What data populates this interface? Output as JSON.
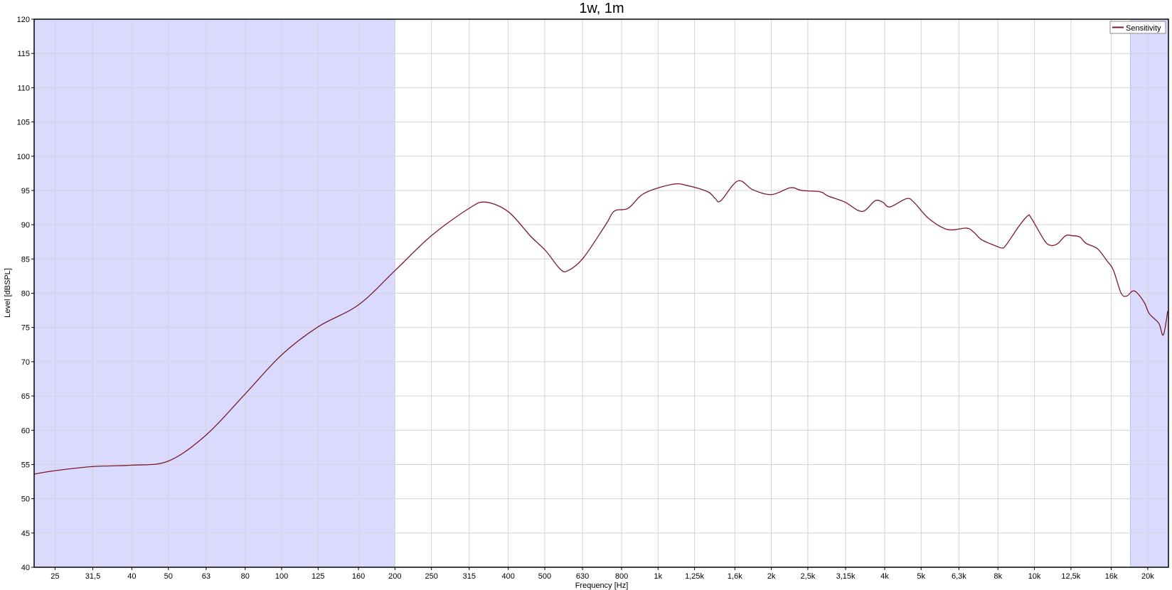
{
  "chart_data": {
    "type": "line",
    "title": "1w, 1m",
    "xlabel": "Frequency [Hz]",
    "ylabel": "Level [dBSPL]",
    "x_scale": "log",
    "xlim": [
      22,
      22700
    ],
    "ylim": [
      40,
      120
    ],
    "grid": true,
    "legend_position": "top-right",
    "x_ticks": [
      25,
      31.5,
      40,
      50,
      63,
      80,
      100,
      125,
      160,
      200,
      250,
      315,
      400,
      500,
      630,
      800,
      1000,
      1250,
      1600,
      2000,
      2500,
      3150,
      4000,
      5000,
      6300,
      8000,
      10000,
      12500,
      16000,
      20000
    ],
    "x_tick_labels": [
      "25",
      "31,5",
      "40",
      "50",
      "63",
      "80",
      "100",
      "125",
      "160",
      "200",
      "250",
      "315",
      "400",
      "500",
      "630",
      "800",
      "1k",
      "1,25k",
      "1,6k",
      "2k",
      "2,5k",
      "3,15k",
      "4k",
      "5k",
      "6,3k",
      "8k",
      "10k",
      "12,5k",
      "16k",
      "20k"
    ],
    "y_ticks": [
      40,
      45,
      50,
      55,
      60,
      65,
      70,
      75,
      80,
      85,
      90,
      95,
      100,
      105,
      110,
      115,
      120
    ],
    "shaded_ranges": [
      [
        22,
        200
      ],
      [
        18000,
        22700
      ]
    ],
    "colors": {
      "shade": "#dadaff",
      "line": "#7b1a2a",
      "grid": "#d3d3d3"
    },
    "series": [
      {
        "name": "Sensitivity",
        "x": [
          22,
          25,
          31.5,
          40,
          50,
          63,
          80,
          100,
          125,
          160,
          200,
          250,
          315,
          348,
          400,
          459,
          503,
          550,
          577,
          632,
          726,
          766,
          833,
          920,
          1094,
          1200,
          1357,
          1420,
          1468,
          1631,
          1786,
          2004,
          2248,
          2407,
          2700,
          2825,
          3137,
          3395,
          3550,
          3774,
          3950,
          4130,
          4570,
          4780,
          5240,
          5880,
          6600,
          6900,
          7240,
          7900,
          8200,
          8400,
          9100,
          9600,
          9800,
          10600,
          11000,
          11500,
          12100,
          12600,
          13200,
          13700,
          14700,
          15600,
          16200,
          17000,
          17600,
          18200,
          18700,
          19600,
          20200,
          21400,
          22000,
          22600
        ],
        "y": [
          53.6,
          54.1,
          54.7,
          54.9,
          55.5,
          59.3,
          65.3,
          71.0,
          75.1,
          78.3,
          83.3,
          88.4,
          92.4,
          93.3,
          91.9,
          88.3,
          86.2,
          83.5,
          83.3,
          85.1,
          90.0,
          92.0,
          92.4,
          94.6,
          95.9,
          95.7,
          94.8,
          93.8,
          93.5,
          96.4,
          95.1,
          94.4,
          95.4,
          95.0,
          94.8,
          94.2,
          93.3,
          92.1,
          92.1,
          93.5,
          93.3,
          92.6,
          93.8,
          93.3,
          90.9,
          89.3,
          89.5,
          88.9,
          87.8,
          86.9,
          86.6,
          87.0,
          89.8,
          91.3,
          91.0,
          87.8,
          87.0,
          87.2,
          88.4,
          88.4,
          88.2,
          87.3,
          86.5,
          84.7,
          83.4,
          80.0,
          79.6,
          80.3,
          80.1,
          78.6,
          77.0,
          75.6,
          73.9,
          77.4
        ]
      }
    ]
  }
}
